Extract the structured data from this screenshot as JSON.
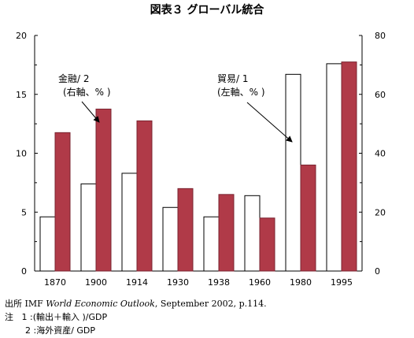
{
  "chart_data": {
    "type": "bar",
    "title": "図表３ グローバル統合",
    "categories": [
      "1870",
      "1900",
      "1914",
      "1930",
      "1938",
      "1960",
      "1980",
      "1995"
    ],
    "series": [
      {
        "name": "貿易/１ (左軸、%)",
        "axis": "left",
        "color": "#ffffff",
        "values": [
          4.6,
          7.4,
          8.3,
          5.4,
          4.6,
          6.4,
          16.7,
          17.6
        ]
      },
      {
        "name": "金融/２ (右軸、%)",
        "axis": "right",
        "color": "#b03a48",
        "values": [
          47,
          55,
          51,
          28,
          26,
          18,
          36,
          71
        ]
      }
    ],
    "ylim_left": [
      0,
      20
    ],
    "ylim_right": [
      0,
      80
    ],
    "yticks_left": [
      "0",
      "5",
      "10",
      "15",
      "20"
    ],
    "yticks_right": [
      "0",
      "20",
      "40",
      "60",
      "80"
    ],
    "annotations": {
      "finance_line1": "金融/ 2",
      "finance_line2": "(右軸、% )",
      "trade_line1": "貿易/ 1",
      "trade_line2": "(左軸、% )"
    },
    "grid": false,
    "legend": "none"
  },
  "notes": {
    "source_label": "出所",
    "source_pre": "IMF ",
    "source_title": "World Economic Outlook",
    "source_post": ", September 2002, p.114.",
    "note_label": "注",
    "note1": "1 :(輸出＋輸入 )/GDP",
    "note2": "2 :海外資産/ GDP"
  }
}
